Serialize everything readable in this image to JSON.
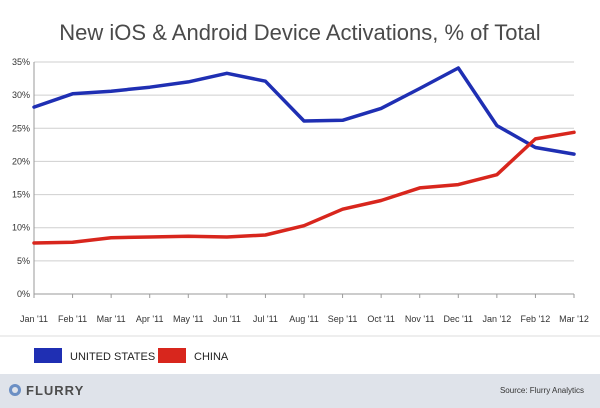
{
  "chart_data": {
    "type": "line",
    "title": "New iOS & Android Device Activations, % of Total",
    "categories": [
      "Jan '11",
      "Feb '11",
      "Mar '11",
      "Apr '11",
      "May '11",
      "Jun '11",
      "Jul '11",
      "Aug '11",
      "Sep '11",
      "Oct '11",
      "Nov '11",
      "Dec '11",
      "Jan '12",
      "Feb '12",
      "Mar '12"
    ],
    "series": [
      {
        "name": "UNITED STATES",
        "color": "#1f2fb3",
        "values": [
          28.2,
          30.2,
          30.6,
          31.2,
          32.0,
          33.3,
          32.1,
          26.1,
          26.2,
          28.0,
          31.0,
          34.1,
          25.4,
          22.1,
          21.1
        ]
      },
      {
        "name": "CHINA",
        "color": "#d8261d",
        "values": [
          7.7,
          7.8,
          8.5,
          8.6,
          8.7,
          8.6,
          8.9,
          10.3,
          12.8,
          14.1,
          16.0,
          16.5,
          18.0,
          23.4,
          24.4
        ]
      }
    ],
    "y_ticks": [
      "0%",
      "5%",
      "10%",
      "15%",
      "20%",
      "25%",
      "30%",
      "35%"
    ],
    "ylim": [
      0,
      35
    ],
    "grid": "horizontal",
    "legend_position": "bottom"
  },
  "footer": {
    "brand": "FLURRY",
    "source": "Source: Flurry Analytics"
  }
}
